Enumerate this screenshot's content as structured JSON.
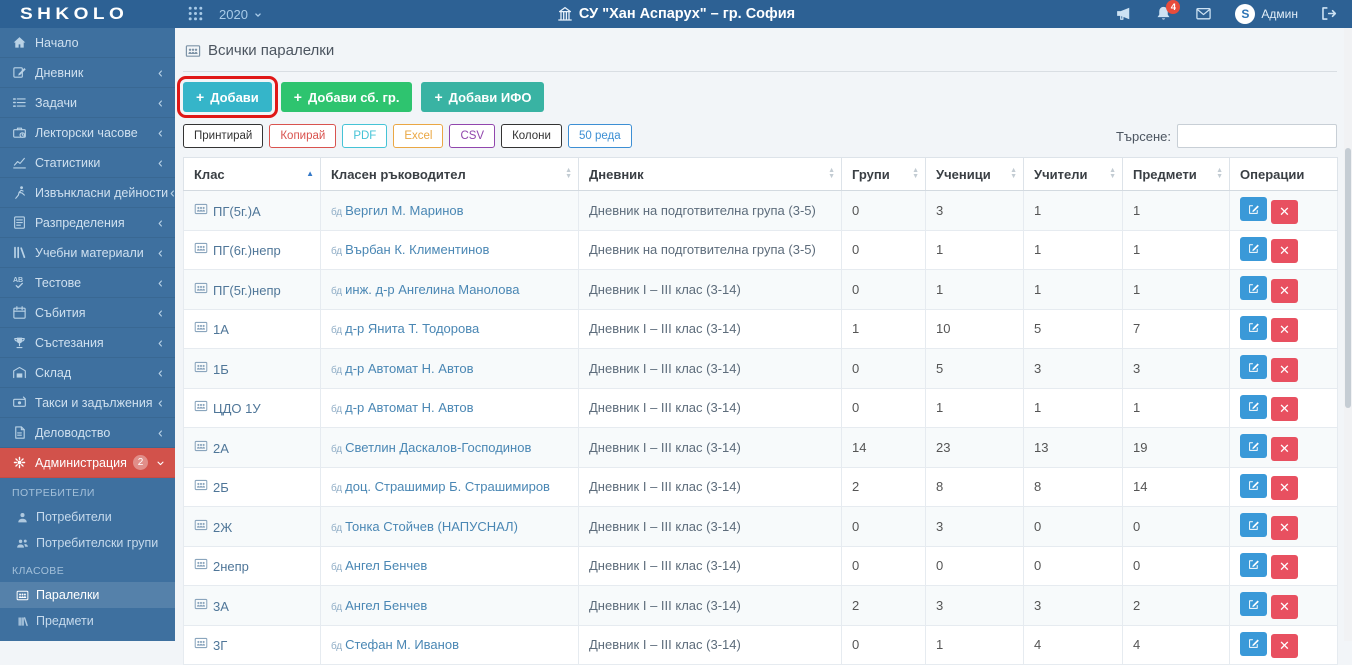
{
  "header": {
    "logo": "SHKOLO",
    "year": "2020",
    "school_name": "СУ \"Хан Аспарух\" – гр. София",
    "notification_count": "4",
    "username": "Админ",
    "avatar_letter": "S"
  },
  "sidebar": {
    "items": [
      {
        "label": "Начало",
        "icon": "home",
        "chevron": false
      },
      {
        "label": "Дневник",
        "icon": "journal",
        "chevron": true
      },
      {
        "label": "Задачи",
        "icon": "tasks",
        "chevron": true
      },
      {
        "label": "Лекторски часове",
        "icon": "lecture-hours",
        "chevron": true
      },
      {
        "label": "Статистики",
        "icon": "statistics",
        "chevron": true
      },
      {
        "label": "Извънкласни дейности",
        "icon": "activities",
        "chevron": true
      },
      {
        "label": "Разпределения",
        "icon": "distributions",
        "chevron": true
      },
      {
        "label": "Учебни материали",
        "icon": "materials",
        "chevron": true
      },
      {
        "label": "Тестове",
        "icon": "tests",
        "chevron": true
      },
      {
        "label": "Събития",
        "icon": "events",
        "chevron": true
      },
      {
        "label": "Състезания",
        "icon": "competitions",
        "chevron": true
      },
      {
        "label": "Склад",
        "icon": "warehouse",
        "chevron": true
      },
      {
        "label": "Такси и задължения",
        "icon": "fees",
        "chevron": true
      },
      {
        "label": "Деловодство",
        "icon": "records",
        "chevron": true
      },
      {
        "label": "Администрация",
        "icon": "administration",
        "chevron": "down",
        "badge": "2",
        "active": true
      }
    ],
    "submenu": [
      {
        "section": "ПОТРЕБИТЕЛИ",
        "items": [
          {
            "label": "Потребители",
            "icon": "user"
          },
          {
            "label": "Потребителски групи",
            "icon": "user-group"
          }
        ]
      },
      {
        "section": "КЛАСОВЕ",
        "items": [
          {
            "label": "Паралелки",
            "icon": "classes",
            "active": true
          },
          {
            "label": "Предмети",
            "icon": "subjects"
          }
        ]
      }
    ]
  },
  "main": {
    "page_title": "Всички паралелки",
    "action_buttons": [
      {
        "label": "Добави",
        "color": "#35b5c9",
        "annotated": true
      },
      {
        "label": "Добави сб. гр.",
        "color": "#2ec46f",
        "annotated": false
      },
      {
        "label": "Добави ИФО",
        "color": "#39b3a3",
        "annotated": false
      }
    ],
    "table_controls": [
      {
        "label": "Принтирай",
        "color": "#333333"
      },
      {
        "label": "Копирай",
        "color": "#d9534f"
      },
      {
        "label": "PDF",
        "color": "#45c3d6"
      },
      {
        "label": "Excel",
        "color": "#eaa744"
      },
      {
        "label": "CSV",
        "color": "#9146ad"
      },
      {
        "label": "Колони",
        "color": "#333333"
      },
      {
        "label": "50 реда",
        "color": "#3d8fd4"
      }
    ],
    "search_label": "Търсене:",
    "search_value": "",
    "table": {
      "teacher_icon_text": "бд",
      "columns": [
        {
          "label": "Клас",
          "sort": "asc"
        },
        {
          "label": "Класен ръководител",
          "sort": "both"
        },
        {
          "label": "Дневник",
          "sort": "both"
        },
        {
          "label": "Групи",
          "sort": "both"
        },
        {
          "label": "Ученици",
          "sort": "both"
        },
        {
          "label": "Учители",
          "sort": "both"
        },
        {
          "label": "Предмети",
          "sort": "both"
        },
        {
          "label": "Операции",
          "sort": "none"
        }
      ],
      "rows": [
        {
          "class_name": "ПГ(5г.)А",
          "teacher": "Вергил М. Маринов",
          "journal": "Дневник на подготвителна група (3-5)",
          "groups": "0",
          "students": "3",
          "teachers": "1",
          "subjects": "1"
        },
        {
          "class_name": "ПГ(6г.)непр",
          "teacher": "Върбан К. Климентинов",
          "journal": "Дневник на подготвителна група (3-5)",
          "groups": "0",
          "students": "1",
          "teachers": "1",
          "subjects": "1"
        },
        {
          "class_name": "ПГ(5г.)непр",
          "teacher": "инж. д-р Ангелина Манолова",
          "journal": "Дневник I – III клас (3-14)",
          "groups": "0",
          "students": "1",
          "teachers": "1",
          "subjects": "1"
        },
        {
          "class_name": "1А",
          "teacher": "д-р Янита Т. Тодорова",
          "journal": "Дневник I – III клас (3-14)",
          "groups": "1",
          "students": "10",
          "teachers": "5",
          "subjects": "7"
        },
        {
          "class_name": "1Б",
          "teacher": "д-р Автомат Н. Автов",
          "journal": "Дневник I – III клас (3-14)",
          "groups": "0",
          "students": "5",
          "teachers": "3",
          "subjects": "3"
        },
        {
          "class_name": "ЦДО 1У",
          "teacher": "д-р Автомат Н. Автов",
          "journal": "Дневник I – III клас (3-14)",
          "groups": "0",
          "students": "1",
          "teachers": "1",
          "subjects": "1"
        },
        {
          "class_name": "2А",
          "teacher": "Светлин Даскалов-Господинов",
          "journal": "Дневник I – III клас (3-14)",
          "groups": "14",
          "students": "23",
          "teachers": "13",
          "subjects": "19"
        },
        {
          "class_name": "2Б",
          "teacher": "доц. Страшимир Б. Страшимиров",
          "journal": "Дневник I – III клас (3-14)",
          "groups": "2",
          "students": "8",
          "teachers": "8",
          "subjects": "14"
        },
        {
          "class_name": "2Ж",
          "teacher": "Тонка Стойчев (НАПУСНАЛ)",
          "journal": "Дневник I – III клас (3-14)",
          "groups": "0",
          "students": "3",
          "teachers": "0",
          "subjects": "0"
        },
        {
          "class_name": "2непр",
          "teacher": "Ангел Бенчев",
          "journal": "Дневник I – III клас (3-14)",
          "groups": "0",
          "students": "0",
          "teachers": "0",
          "subjects": "0"
        },
        {
          "class_name": "3А",
          "teacher": "Ангел Бенчев",
          "journal": "Дневник I – III клас (3-14)",
          "groups": "2",
          "students": "3",
          "teachers": "3",
          "subjects": "2"
        },
        {
          "class_name": "3Г",
          "teacher": "Стефан М. Иванов",
          "journal": "Дневник I – III клас (3-14)",
          "groups": "0",
          "students": "1",
          "teachers": "4",
          "subjects": "4"
        }
      ]
    }
  },
  "annotation": {
    "highlight_color": "#e01717"
  }
}
